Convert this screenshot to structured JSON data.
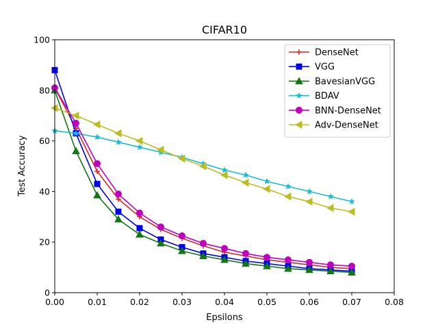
{
  "chart_data": {
    "type": "line",
    "title": "CIFAR10",
    "xlabel": "Epsilons",
    "ylabel": "Test Accuracy",
    "xlim": [
      0,
      0.08
    ],
    "ylim": [
      0,
      100
    ],
    "xticks": [
      "0.00",
      "0.01",
      "0.02",
      "0.03",
      "0.04",
      "0.05",
      "0.06",
      "0.07",
      "0.08"
    ],
    "yticks": [
      "0",
      "20",
      "40",
      "60",
      "80",
      "100"
    ],
    "grid": false,
    "legend_position": "top-right",
    "x": [
      0.0,
      0.005,
      0.01,
      0.015,
      0.02,
      0.025,
      0.03,
      0.035,
      0.04,
      0.045,
      0.05,
      0.055,
      0.06,
      0.065,
      0.07
    ],
    "series": [
      {
        "name": "DenseNet",
        "color": "#d62728",
        "marker": "plus",
        "values": [
          81,
          65,
          48,
          37,
          30,
          25,
          21.5,
          18.5,
          16,
          14.5,
          13,
          12,
          11,
          10,
          9.5
        ]
      },
      {
        "name": "VGG",
        "color": "#0000ee",
        "marker": "square",
        "values": [
          88,
          63,
          43,
          32,
          25.5,
          21,
          18,
          15.5,
          14,
          12.5,
          11.5,
          10.5,
          9.5,
          9,
          8.5
        ]
      },
      {
        "name": "BavesianVGG",
        "color": "#117711",
        "marker": "triangle-up",
        "values": [
          80,
          56,
          38.5,
          29,
          23,
          19.5,
          16.5,
          14.5,
          13,
          11.5,
          10.5,
          9.5,
          9,
          8.5,
          8
        ]
      },
      {
        "name": " BDAV",
        "color": "#17becf",
        "marker": "star",
        "values": [
          64,
          63,
          61.5,
          59.5,
          57.5,
          55.5,
          53.5,
          51,
          48.5,
          46.5,
          44,
          42,
          40,
          38,
          36
        ]
      },
      {
        "name": "BNN-DenseNet",
        "color": "#bf00bf",
        "marker": "circle",
        "values": [
          81,
          67,
          51,
          39,
          31.5,
          26,
          22.5,
          19.5,
          17.5,
          15.5,
          14,
          13,
          12,
          11,
          10.5
        ]
      },
      {
        "name": "Adv-DenseNet",
        "color": "#bcbd22",
        "marker": "triangle-left",
        "values": [
          73,
          70,
          66.5,
          63,
          60,
          56.5,
          53,
          50,
          46.5,
          43.5,
          41,
          38,
          36,
          33.5,
          32
        ]
      }
    ]
  }
}
